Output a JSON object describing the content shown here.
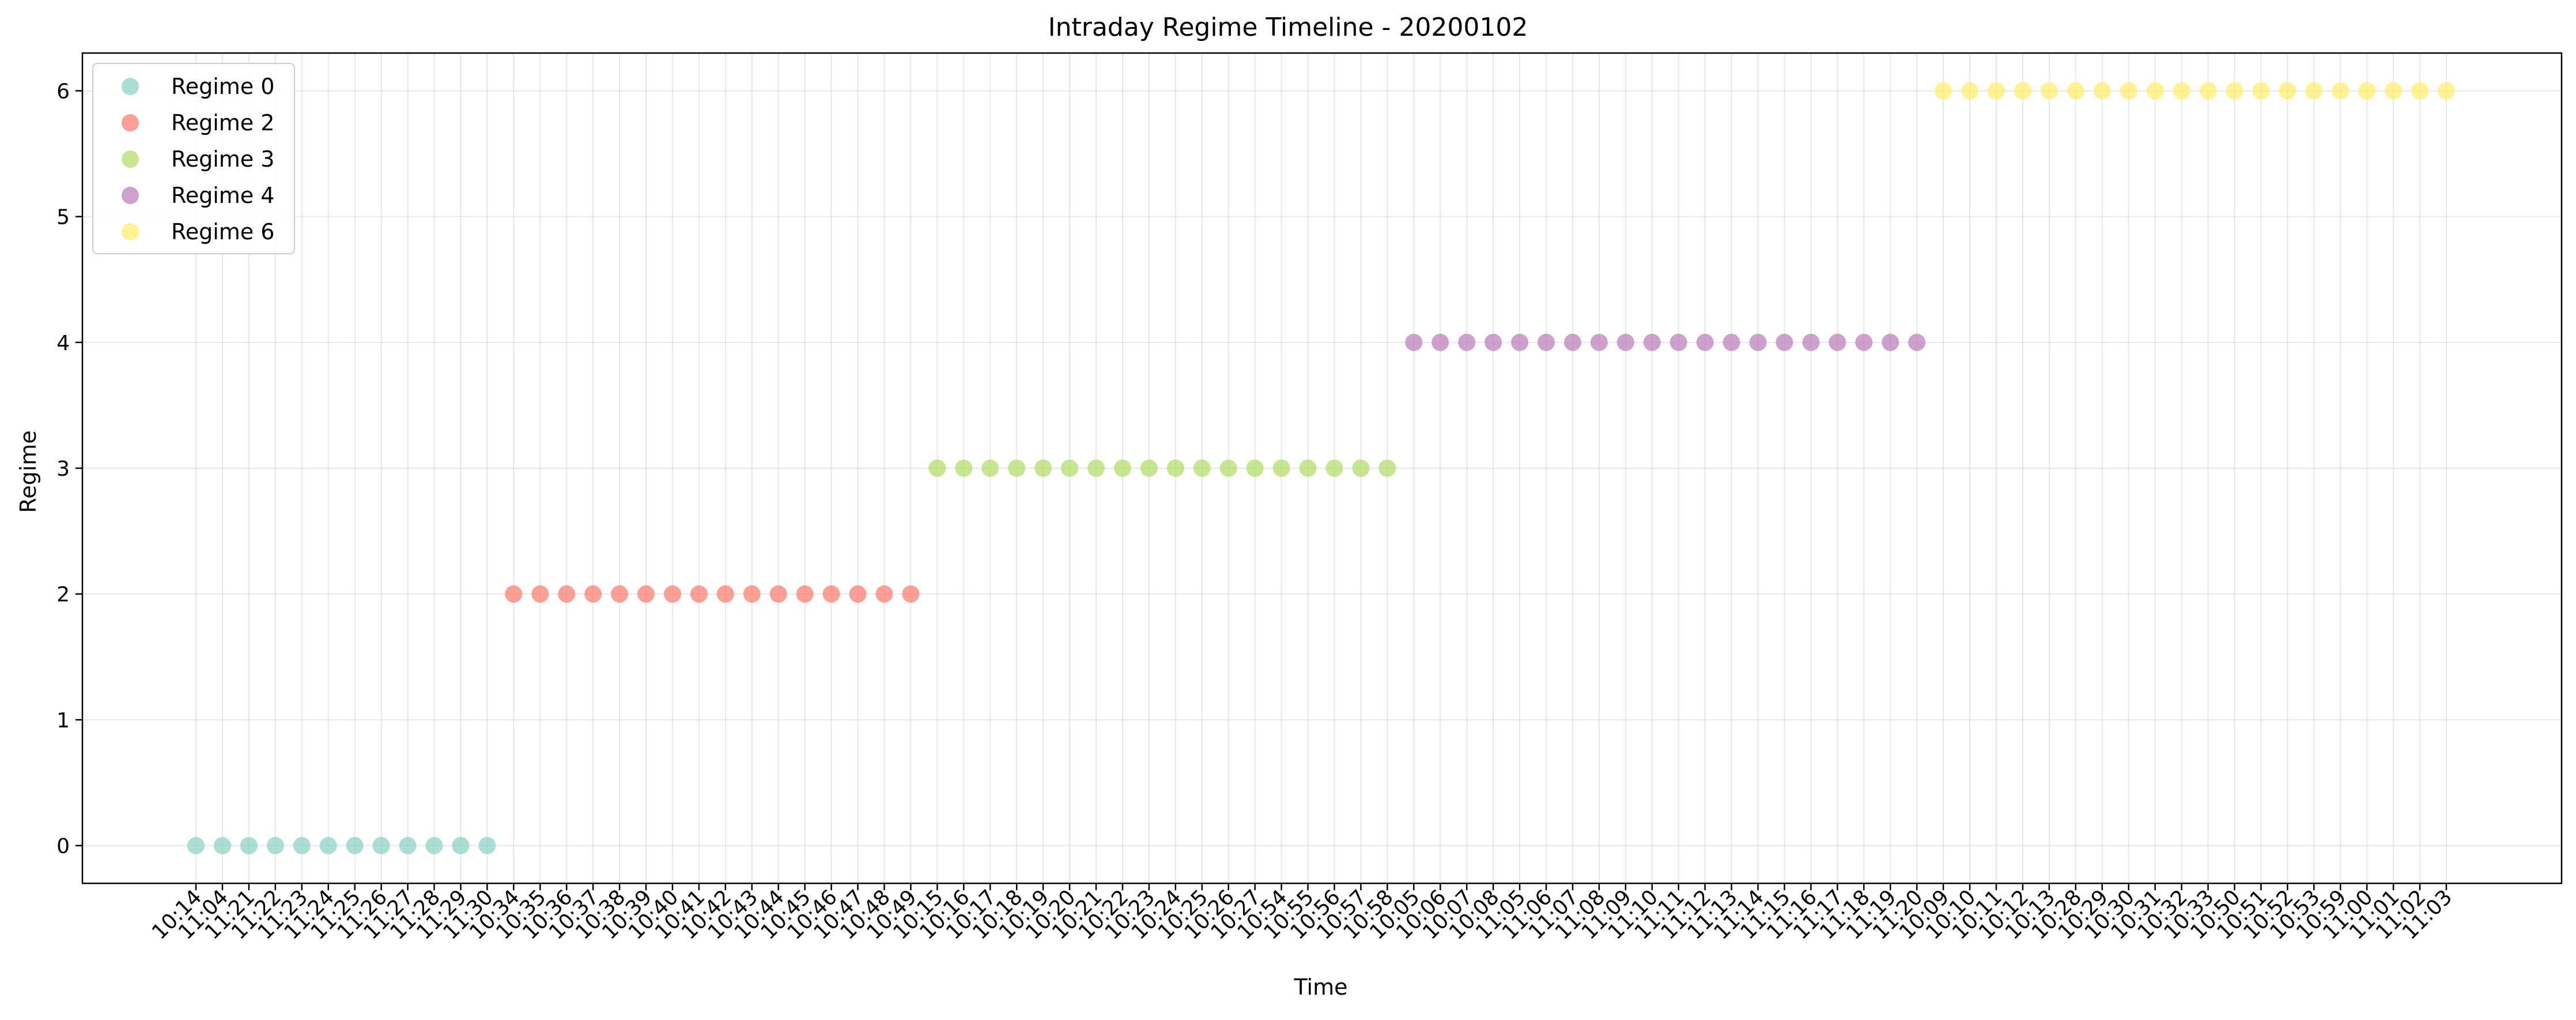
{
  "chart_data": {
    "type": "scatter",
    "title": "Intraday Regime Timeline - 20200102",
    "xlabel": "Time",
    "ylabel": "Regime",
    "ylim": [
      -0.3,
      6.3
    ],
    "yticks": [
      0,
      1,
      2,
      3,
      4,
      5,
      6
    ],
    "grid": true,
    "legend_position": "upper-left",
    "categories": [
      "10:14",
      "11:04",
      "11:21",
      "11:22",
      "11:23",
      "11:24",
      "11:25",
      "11:26",
      "11:27",
      "11:28",
      "11:29",
      "11:30",
      "10:34",
      "10:35",
      "10:36",
      "10:37",
      "10:38",
      "10:39",
      "10:40",
      "10:41",
      "10:42",
      "10:43",
      "10:44",
      "10:45",
      "10:46",
      "10:47",
      "10:48",
      "10:49",
      "10:15",
      "10:16",
      "10:17",
      "10:18",
      "10:19",
      "10:20",
      "10:21",
      "10:22",
      "10:23",
      "10:24",
      "10:25",
      "10:26",
      "10:27",
      "10:54",
      "10:55",
      "10:56",
      "10:57",
      "10:58",
      "10:05",
      "10:06",
      "10:07",
      "10:08",
      "11:05",
      "11:06",
      "11:07",
      "11:08",
      "11:09",
      "11:10",
      "11:11",
      "11:12",
      "11:13",
      "11:14",
      "11:15",
      "11:16",
      "11:17",
      "11:18",
      "11:19",
      "11:20",
      "10:09",
      "10:10",
      "10:11",
      "10:12",
      "10:13",
      "10:28",
      "10:29",
      "10:30",
      "10:31",
      "10:32",
      "10:33",
      "10:50",
      "10:51",
      "10:52",
      "10:53",
      "10:59",
      "11:00",
      "11:01",
      "11:02",
      "11:03"
    ],
    "series": [
      {
        "name": "Regime 0",
        "color": "#8dd3c7",
        "y": 0,
        "start": 0,
        "count": 12
      },
      {
        "name": "Regime 2",
        "color": "#fb8072",
        "y": 2,
        "start": 12,
        "count": 16
      },
      {
        "name": "Regime 3",
        "color": "#b3de69",
        "y": 3,
        "start": 28,
        "count": 18
      },
      {
        "name": "Regime 4",
        "color": "#bc80bd",
        "y": 4,
        "start": 46,
        "count": 20
      },
      {
        "name": "Regime 6",
        "color": "#ffed6f",
        "y": 6,
        "start": 66,
        "count": 20
      }
    ]
  }
}
